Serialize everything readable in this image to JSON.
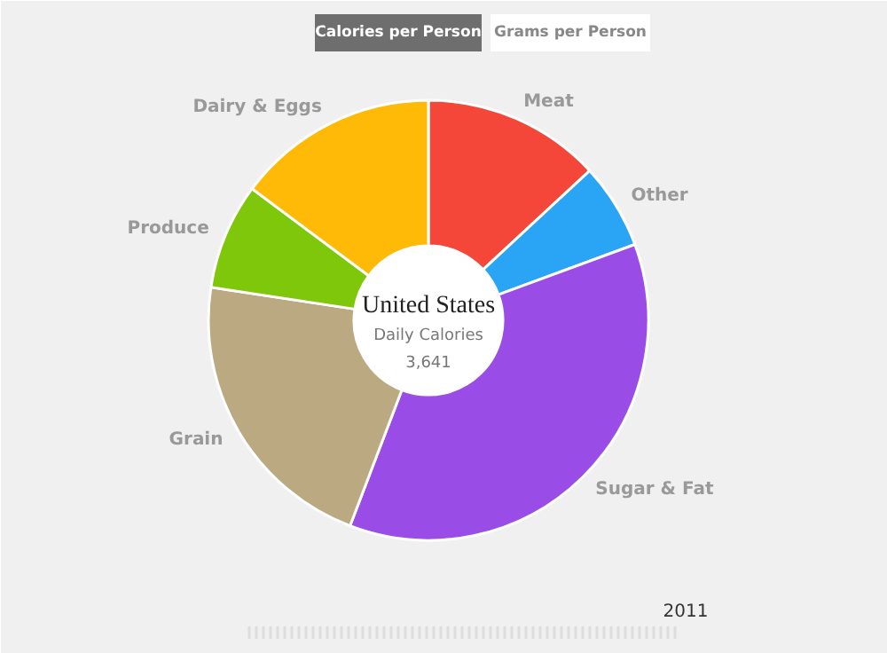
{
  "chart_data": {
    "type": "donut",
    "title": "United States",
    "subtitle": "Daily Calories",
    "categories": [
      "Meat",
      "Other",
      "Sugar & Fat",
      "Grain",
      "Produce",
      "Dairy & Eggs"
    ],
    "values": [
      13.1,
      6.3,
      36.4,
      21.6,
      7.8,
      14.8
    ],
    "colors": [
      "#f5463a",
      "#2aa5f5",
      "#9a4de6",
      "#bba981",
      "#7ec70a",
      "#ffba08"
    ],
    "annotations": [
      "3,641",
      "Calories per Person",
      "Grams per Person",
      "2011"
    ]
  }
}
